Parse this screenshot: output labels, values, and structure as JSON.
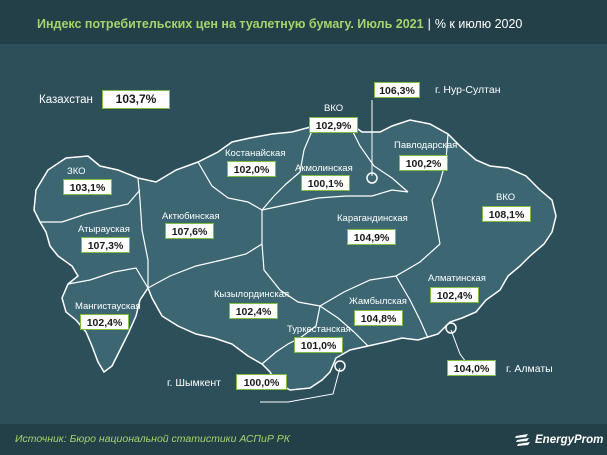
{
  "title": {
    "main": "Индекс потребительских цен на туалетную бумагу. Июль 2021",
    "sub": "% к июлю 2020"
  },
  "national": {
    "name": "Казахстан",
    "value": "103,7%"
  },
  "regions": [
    {
      "id": "zko",
      "name": "ЗКО",
      "value": "103,1%"
    },
    {
      "id": "atyrau",
      "name": "Атырауская",
      "value": "107,3%"
    },
    {
      "id": "mangystau",
      "name": "Мангистауская",
      "value": "102,4%"
    },
    {
      "id": "aktobe",
      "name": "Актюбинская",
      "value": "107,6%"
    },
    {
      "id": "kostanay",
      "name": "Костанайская",
      "value": "102,0%"
    },
    {
      "id": "sko",
      "name": "ВКО",
      "value": "102,9%"
    },
    {
      "id": "akmola",
      "name": "Акмолинская",
      "value": "100,1%"
    },
    {
      "id": "pavlodar",
      "name": "Павлодарская",
      "value": "100,2%"
    },
    {
      "id": "vko",
      "name": "ВКО",
      "value": "108,1%"
    },
    {
      "id": "karaganda",
      "name": "Карагандинская",
      "value": "104,9%"
    },
    {
      "id": "kyzylorda",
      "name": "Кызылординская",
      "value": "102,4%"
    },
    {
      "id": "zhambyl",
      "name": "Жамбылская",
      "value": "104,8%"
    },
    {
      "id": "turkestan",
      "name": "Туркестанская",
      "value": "101,0%"
    },
    {
      "id": "almaty_reg",
      "name": "Алматинская",
      "value": "102,4%"
    }
  ],
  "cities": [
    {
      "id": "nursultan",
      "name": "г. Нур-Султан",
      "value": "106,3%"
    },
    {
      "id": "almaty",
      "name": "г. Алматы",
      "value": "104,0%"
    },
    {
      "id": "shymkent",
      "name": "г. Шымкент",
      "value": "100,0%"
    }
  ],
  "footer": {
    "source": "Источник: Бюро национальной  статистики АСПиР РК",
    "logo_text": "EnergyProm"
  },
  "colors": {
    "background": "#2c4f5a",
    "header": "#234049",
    "title_accent": "#a6d46a",
    "value_border": "#7fbf3f",
    "map_fill": "#3b6672",
    "map_border": "#ffffff"
  },
  "icons": [
    "city-marker-icon",
    "energyprom-logo-icon"
  ]
}
